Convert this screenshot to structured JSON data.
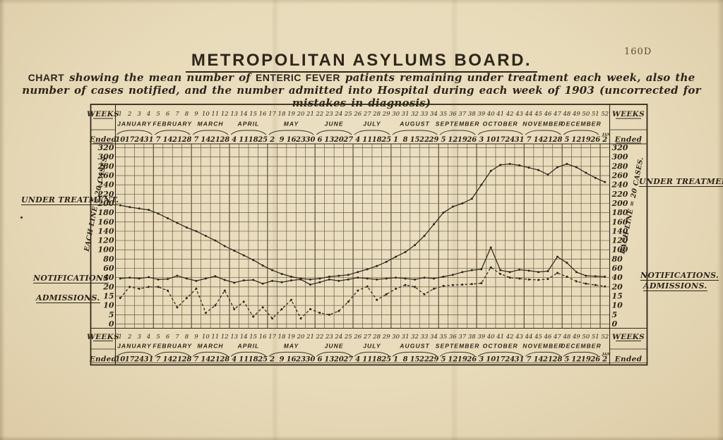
{
  "page_number": "160D",
  "title": "METROPOLITAN ASYLUMS BOARD.",
  "subtitle": {
    "line1_lead": "CHART",
    "line1_mid": " showing the mean number of ",
    "line1_em": "ENTERIC FEVER",
    "line1_tail": " patients remaining under treatment each week, also the",
    "line2": "number of cases notified, and the number admitted into Hospital during each week of 1903 (uncorrected for mistakes in diagnosis)"
  },
  "header_labels": {
    "weeks": "WEEKS",
    "ended": "Ended"
  },
  "side_labels": {
    "left": {
      "under_treatment": "UNDER TREATMENT.",
      "notifications": "NOTIFICATIONS",
      "admissions": "ADMISSIONS."
    },
    "right": {
      "under_treatment": "UNDER TREATMENT.",
      "notifications": "NOTIFICATIONS.",
      "admissions": "ADMISSIONS."
    }
  },
  "colors": {
    "paper": "#e8dbba",
    "ink": "#2e261a",
    "grid": "#51432f"
  },
  "chart_data": {
    "type": "line",
    "title": "METROPOLITAN ASYLUMS BOARD.",
    "subtitle": "Mean number of ENTERIC FEVER patients remaining under treatment each week, cases notified, and admissions into Hospital during each week of 1903",
    "xlabel": "WEEKS / Ended",
    "ylabel": "EACH LINE = 20 CASES",
    "ylim": [
      0,
      320
    ],
    "grid": true,
    "legend_position": "side-margins",
    "scale_note": "horizontal lines every 20 cases from 320 down to 20, then every 5 cases: 15, 10, 5, 0",
    "y_axis_labels": [
      320,
      300,
      280,
      260,
      240,
      220,
      200,
      180,
      160,
      140,
      120,
      100,
      80,
      60,
      40,
      20,
      15,
      10,
      5,
      0
    ],
    "y_axis_note_left": "EACH LINE = 20 CASES",
    "y_axis_note_right": "EACH LINE = 20 CASES.",
    "weeks": [
      1,
      2,
      3,
      4,
      5,
      6,
      7,
      8,
      9,
      10,
      11,
      12,
      13,
      14,
      15,
      16,
      17,
      18,
      19,
      20,
      21,
      22,
      23,
      24,
      25,
      26,
      27,
      28,
      29,
      30,
      31,
      32,
      33,
      34,
      35,
      36,
      37,
      38,
      39,
      40,
      41,
      42,
      43,
      44,
      45,
      46,
      47,
      48,
      49,
      50,
      51,
      52
    ],
    "months": [
      {
        "label": "JANUARY",
        "weeks": 4
      },
      {
        "label": "FEBRUARY",
        "weeks": 4
      },
      {
        "label": "MARCH",
        "weeks": 4
      },
      {
        "label": "APRIL",
        "weeks": 4
      },
      {
        "label": "MAY",
        "weeks": 5
      },
      {
        "label": "JUNE",
        "weeks": 4
      },
      {
        "label": "JULY",
        "weeks": 4
      },
      {
        "label": "AUGUST",
        "weeks": 5
      },
      {
        "label": "SEPTEMBER",
        "weeks": 4
      },
      {
        "label": "OCTOBER",
        "weeks": 5
      },
      {
        "label": "NOVEMBER",
        "weeks": 4
      },
      {
        "label": "DECEMBER",
        "weeks": 4
      }
    ],
    "ended_dates": [
      10,
      17,
      24,
      31,
      7,
      14,
      21,
      28,
      7,
      14,
      21,
      28,
      4,
      11,
      18,
      25,
      2,
      9,
      16,
      23,
      30,
      6,
      13,
      20,
      27,
      4,
      11,
      18,
      25,
      1,
      8,
      15,
      22,
      29,
      5,
      12,
      19,
      26,
      3,
      10,
      17,
      24,
      31,
      7,
      14,
      21,
      28,
      5,
      12,
      19,
      26,
      2
    ],
    "last_date_month_note": "JAN",
    "series": [
      {
        "name": "Under Treatment",
        "line": "solid",
        "values": [
          196,
          192,
          189,
          186,
          178,
          168,
          158,
          148,
          140,
          130,
          120,
          108,
          98,
          88,
          78,
          66,
          56,
          48,
          42,
          38,
          36,
          38,
          42,
          44,
          46,
          52,
          58,
          65,
          74,
          85,
          95,
          110,
          130,
          155,
          180,
          193,
          200,
          210,
          240,
          270,
          283,
          285,
          282,
          277,
          272,
          262,
          278,
          285,
          278,
          266,
          255,
          246
        ]
      },
      {
        "name": "Notifications",
        "line": "solid",
        "values": [
          38,
          40,
          38,
          41,
          36,
          37,
          44,
          38,
          33,
          38,
          43,
          35,
          29,
          34,
          35,
          27,
          33,
          30,
          34,
          36,
          25,
          30,
          36,
          33,
          36,
          40,
          38,
          36,
          38,
          40,
          38,
          36,
          40,
          38,
          42,
          46,
          52,
          56,
          58,
          105,
          56,
          52,
          57,
          55,
          52,
          54,
          85,
          72,
          52,
          44,
          43,
          42
        ]
      },
      {
        "name": "Admissions",
        "line": "dashed",
        "values": [
          14,
          20,
          19,
          20,
          20,
          18,
          9,
          14,
          19,
          6,
          10,
          18,
          8,
          12,
          4,
          9,
          3,
          8,
          13,
          3,
          8,
          6,
          5,
          7,
          12,
          18,
          21,
          13,
          16,
          19,
          24,
          20,
          16,
          19,
          22,
          24,
          25,
          26,
          28,
          62,
          48,
          40,
          38,
          36,
          35,
          37,
          50,
          42,
          32,
          27,
          24,
          21
        ]
      }
    ]
  }
}
